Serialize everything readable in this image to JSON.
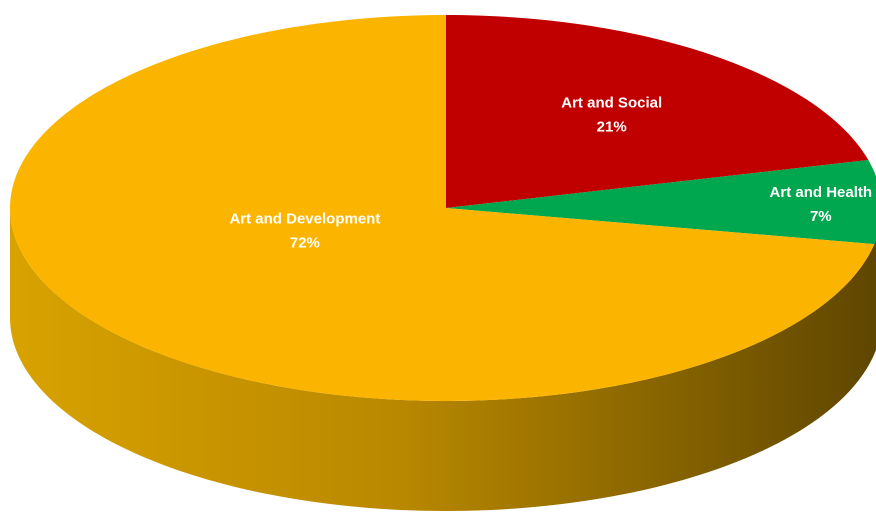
{
  "chart_data": {
    "type": "pie",
    "style": "3d",
    "slices": [
      {
        "label": "Art and Social",
        "value": 21,
        "value_label": "21%",
        "color": "#C00000"
      },
      {
        "label": "Art and Health",
        "value": 7,
        "value_label": "7%",
        "color": "#00A74E"
      },
      {
        "label": "Art and Development",
        "value": 72,
        "value_label": "72%",
        "color": "#FBB500"
      }
    ],
    "legend": false
  }
}
